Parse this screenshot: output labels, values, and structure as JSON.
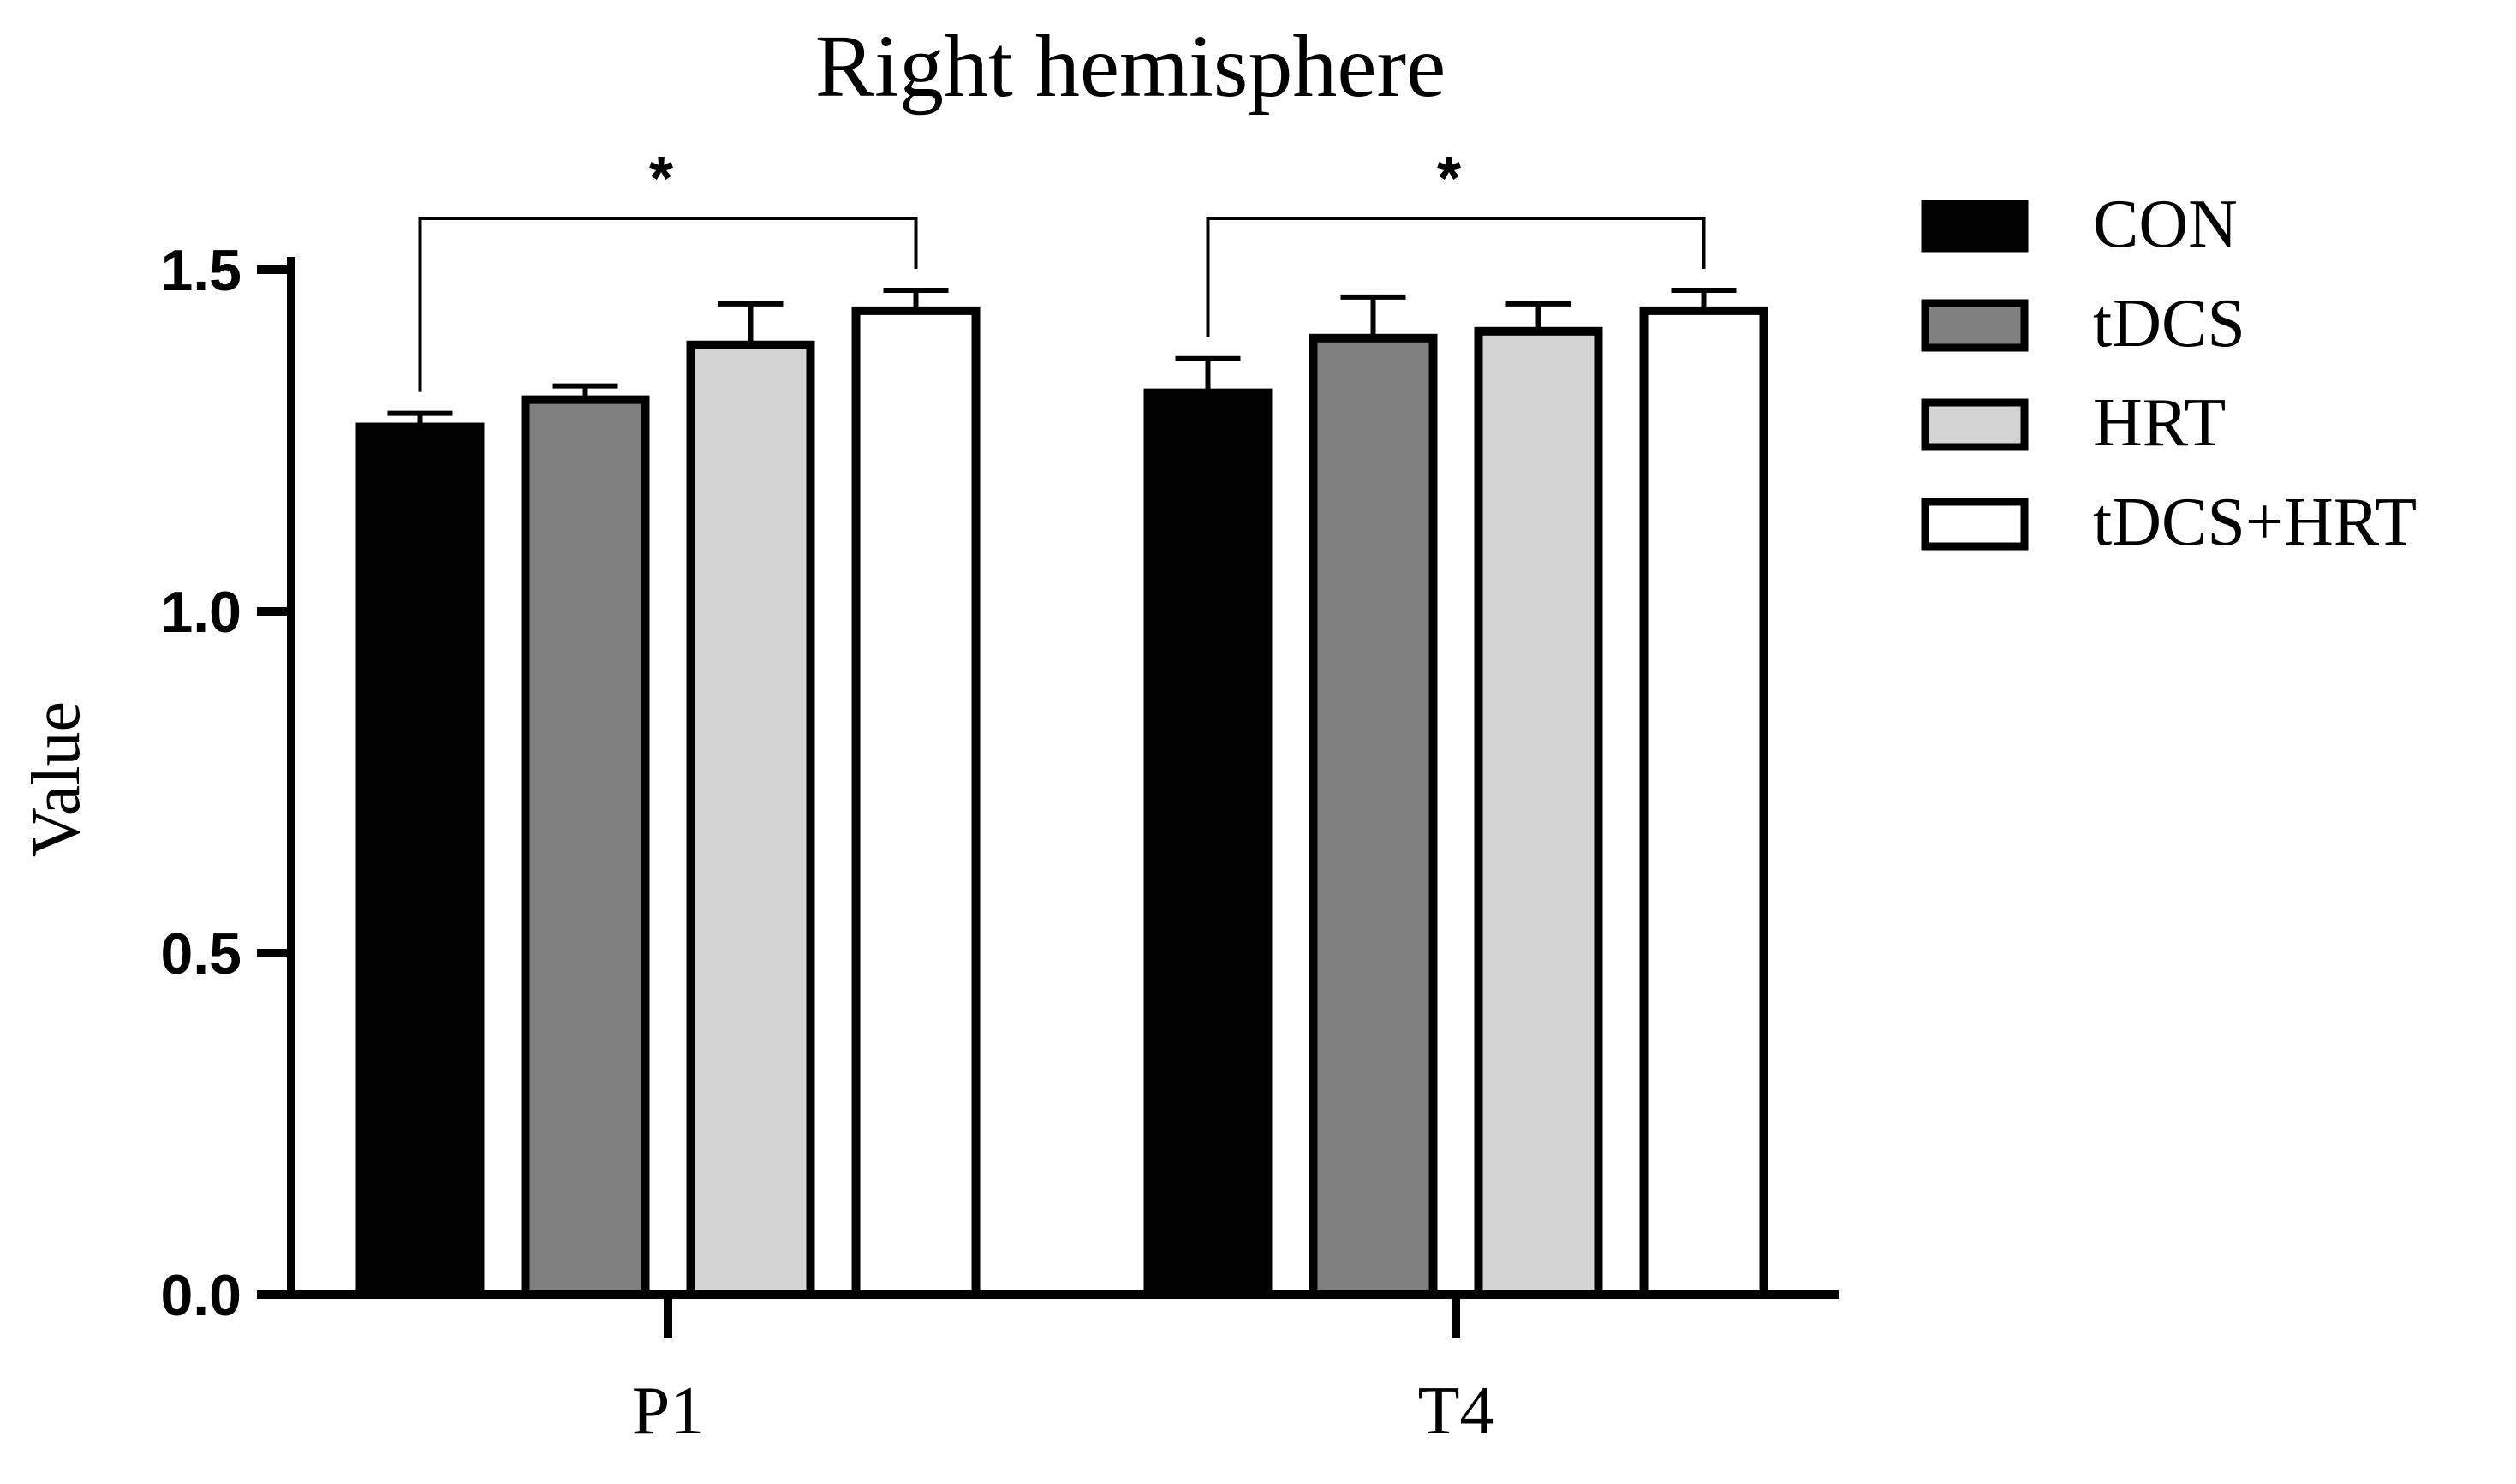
{
  "chart_data": {
    "type": "bar",
    "title": "Right hemisphere",
    "xlabel": "",
    "ylabel": "Value",
    "ylim": [
      0,
      1.5
    ],
    "yticks": [
      "0.0",
      "0.5",
      "1.0",
      "1.5"
    ],
    "categories": [
      "P1",
      "T4"
    ],
    "series": [
      {
        "name": "CON",
        "values": [
          1.27,
          1.32
        ],
        "errors": [
          0.02,
          0.05
        ],
        "color": "#000000"
      },
      {
        "name": "tDCS",
        "values": [
          1.31,
          1.4
        ],
        "errors": [
          0.02,
          0.06
        ],
        "color": "#808080"
      },
      {
        "name": "HRT",
        "values": [
          1.39,
          1.41
        ],
        "errors": [
          0.06,
          0.04
        ],
        "color": "#d4d4d4"
      },
      {
        "name": "tDCS+HRT",
        "values": [
          1.44,
          1.44
        ],
        "errors": [
          0.03,
          0.03
        ],
        "color": "#ffffff"
      }
    ],
    "significance": [
      {
        "category": "P1",
        "from_series": "CON",
        "to_series": "tDCS+HRT",
        "label": "*"
      },
      {
        "category": "T4",
        "from_series": "CON",
        "to_series": "tDCS+HRT",
        "label": "*"
      }
    ],
    "legend_position": "right",
    "grid": false
  }
}
